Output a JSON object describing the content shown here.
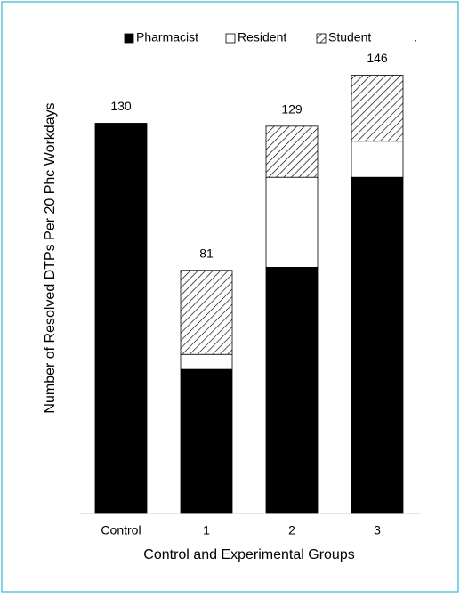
{
  "chart_data": {
    "type": "stacked_bar",
    "xlabel": "Control and Experimental Groups",
    "ylabel": "Number of Resolved DTPs Per 20 Phc Workdays",
    "categories": [
      "Control",
      "1",
      "2",
      "3"
    ],
    "series": [
      {
        "name": "Pharmacist",
        "color": "#000000",
        "values": [
          130,
          48,
          82,
          112
        ]
      },
      {
        "name": "Resident",
        "color": "#ffffff",
        "values": [
          0,
          5,
          30,
          12
        ]
      },
      {
        "name": "Student",
        "color": "#ffffff",
        "hatch": true,
        "values": [
          0,
          28,
          17,
          22
        ]
      }
    ],
    "totals": [
      130,
      81,
      129,
      146
    ],
    "legend_note": ".",
    "ylim": [
      0,
      150
    ]
  }
}
